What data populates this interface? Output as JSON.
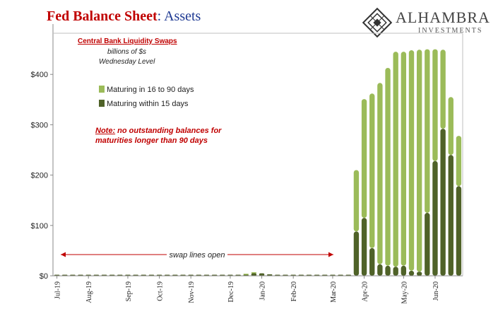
{
  "title": {
    "part1": "Fed Balance Sheet",
    "part2": ": Assets"
  },
  "logo": {
    "name": "ALHAMBRA",
    "sub": "INVESTMENTS"
  },
  "captions": {
    "series": "Central Bank Liquidity Swaps",
    "units": "billions of $s",
    "frequency": "Wednesday Level"
  },
  "legend": {
    "long": "Maturing in 16 to 90 days",
    "short": "Maturing within 15 days"
  },
  "note": {
    "lead": "Note:",
    "line1": " no outstanding balances for",
    "line2": "maturities longer than 90 days"
  },
  "colors": {
    "long": "#9bbb59",
    "short": "#4f6228",
    "title_red": "#c00000",
    "title_blue": "#1f3a93"
  },
  "chart_data": {
    "type": "bar",
    "stacked": true,
    "ylim": [
      0,
      500
    ],
    "yticks": [
      0,
      100,
      200,
      300,
      400
    ],
    "ytick_labels": [
      "$0",
      "$100",
      "$200",
      "$300",
      "$400"
    ],
    "annotation": "swap lines open",
    "x_labels": [
      "Jul-19",
      "Aug-19",
      "Sep-19",
      "Oct-19",
      "Nov-19",
      "Dec-19",
      "Jan-20",
      "Feb-20",
      "Mar-20",
      "Apr-20",
      "May-20",
      "Jun-20"
    ],
    "x_label_week_index": [
      0,
      4,
      9,
      13,
      17,
      22,
      26,
      30,
      35,
      39,
      44,
      48
    ],
    "series": [
      {
        "name": "Maturing within 15 days",
        "values": [
          1,
          1,
          1,
          2,
          2,
          1,
          1,
          1,
          1,
          1,
          1,
          1,
          1,
          1,
          1,
          1,
          1,
          1,
          1,
          1,
          1,
          1,
          1,
          1,
          2,
          5,
          5,
          3,
          1,
          1,
          1,
          1,
          1,
          1,
          1,
          1,
          1,
          1,
          88,
          115,
          55,
          23,
          20,
          18,
          20,
          10,
          8,
          125,
          228,
          292,
          240,
          178
        ]
      },
      {
        "name": "Maturing in 16 to 90 days",
        "values": [
          0,
          0,
          0,
          0,
          0,
          0,
          0,
          0,
          0,
          0,
          0,
          0,
          0,
          0,
          0,
          0,
          0,
          0,
          0,
          0,
          0,
          0,
          0,
          0,
          2,
          1,
          0,
          0,
          0,
          0,
          0,
          0,
          0,
          0,
          0,
          0,
          0,
          0,
          122,
          236,
          307,
          360,
          393,
          427,
          425,
          438,
          441,
          325,
          222,
          157,
          115,
          100
        ]
      }
    ]
  }
}
